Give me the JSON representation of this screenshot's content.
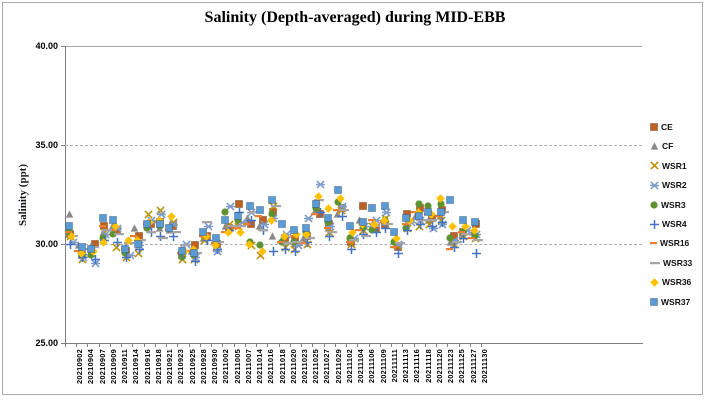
{
  "chart_data": {
    "type": "scatter",
    "title": "Salinity (Depth-averaged) during MID-EBB",
    "xlabel": "",
    "ylabel": "Salinity (ppt)",
    "ylim": [
      25,
      40
    ],
    "yticks": [
      40,
      35,
      30,
      25
    ],
    "ytick_labels": [
      "40.00",
      "35.00",
      "30.00",
      "25.00"
    ],
    "grid": "horizontal-dashed",
    "legend_position": "right",
    "categories": [
      "20210902",
      "20210904",
      "20210907",
      "20210909",
      "20210911",
      "20210914",
      "20210916",
      "20210918",
      "20210921",
      "20210923",
      "20210925",
      "20210928",
      "20210930",
      "20211002",
      "20211005",
      "20211007",
      "20211014",
      "20211016",
      "20211018",
      "20211020",
      "20211023",
      "20211025",
      "20211027",
      "20211029",
      "20211102",
      "20211104",
      "20211106",
      "20211109",
      "20211111",
      "20211113",
      "20211116",
      "20211118",
      "20211120",
      "20211123",
      "20211125",
      "20211127",
      "20211130"
    ],
    "series": [
      {
        "name": "CE",
        "marker": "square",
        "color": "#BE6022",
        "values": [
          30.5,
          29.4,
          30.0,
          30.9,
          30.7,
          29.6,
          30.4,
          31.0,
          31.1,
          30.9,
          29.4,
          29.9,
          30.4,
          30.0,
          30.8,
          32.0,
          31.0,
          31.2,
          31.6,
          30.3,
          30.2,
          30.4,
          31.5,
          31.0,
          31.8,
          30.1,
          31.9,
          30.8,
          31.0,
          29.8,
          31.5,
          31.8,
          31.3,
          31.7,
          30.4,
          30.6,
          31.0
        ]
      },
      {
        "name": "CF",
        "marker": "triangle",
        "color": "#898989",
        "values": [
          31.5,
          29.9,
          29.9,
          30.6,
          30.9,
          29.8,
          30.8,
          30.9,
          30.8,
          30.7,
          29.7,
          29.6,
          30.3,
          30.1,
          30.9,
          31.0,
          31.3,
          30.9,
          30.4,
          30.2,
          30.0,
          30.3,
          31.7,
          30.8,
          31.5,
          30.4,
          31.2,
          31.0,
          31.1,
          30.2,
          31.0,
          31.4,
          31.2,
          31.4,
          30.1,
          30.5,
          30.6
        ]
      },
      {
        "name": "WSR1",
        "marker": "x",
        "color": "#BF8F00",
        "values": [
          30.4,
          29.2,
          29.5,
          30.6,
          29.8,
          29.3,
          29.5,
          31.5,
          31.7,
          31.1,
          29.2,
          29.2,
          30.2,
          29.8,
          31.0,
          30.9,
          29.9,
          29.4,
          31.9,
          29.8,
          29.7,
          30.0,
          31.9,
          30.6,
          31.7,
          30.0,
          30.7,
          30.9,
          31.3,
          29.9,
          30.8,
          30.9,
          31.0,
          31.2,
          30.0,
          30.4,
          30.3
        ]
      },
      {
        "name": "WSR2",
        "marker": "asterisk",
        "color": "#7D9BCB",
        "values": [
          30.1,
          29.3,
          29.0,
          30.5,
          30.8,
          29.4,
          29.9,
          31.2,
          31.5,
          31.0,
          30.0,
          29.3,
          30.9,
          29.6,
          31.9,
          31.1,
          31.6,
          31.0,
          31.3,
          30.5,
          29.9,
          31.3,
          33.0,
          30.9,
          31.9,
          30.3,
          30.9,
          31.2,
          31.6,
          30.0,
          31.1,
          31.2,
          30.8,
          31.0,
          30.2,
          30.7,
          30.5
        ]
      },
      {
        "name": "WSR3",
        "marker": "circle",
        "color": "#5E9132",
        "values": [
          30.6,
          29.4,
          29.4,
          30.3,
          30.5,
          29.5,
          30.0,
          30.8,
          30.9,
          30.8,
          29.3,
          29.4,
          30.5,
          30.2,
          31.6,
          31.2,
          30.1,
          29.9,
          31.5,
          30.1,
          30.1,
          30.6,
          31.8,
          31.1,
          32.1,
          30.3,
          30.8,
          30.7,
          31.2,
          30.1,
          30.8,
          32.0,
          31.9,
          32.0,
          30.3,
          30.6,
          30.4
        ]
      },
      {
        "name": "WSR4",
        "marker": "plus",
        "color": "#4472C4",
        "values": [
          30.0,
          29.3,
          29.2,
          30.2,
          30.1,
          29.3,
          29.7,
          30.6,
          30.4,
          30.4,
          29.5,
          29.1,
          30.2,
          29.7,
          30.7,
          31.6,
          31.2,
          30.7,
          29.6,
          29.7,
          29.6,
          30.1,
          31.6,
          30.4,
          31.4,
          29.7,
          30.5,
          30.6,
          30.8,
          29.5,
          30.7,
          31.0,
          30.9,
          31.1,
          29.8,
          30.3,
          29.5
        ]
      },
      {
        "name": "WSR16",
        "marker": "dash",
        "color": "#ED7D31",
        "values": [
          30.5,
          29.5,
          29.6,
          30.8,
          30.6,
          29.6,
          30.3,
          30.9,
          31.0,
          30.6,
          29.4,
          29.5,
          30.3,
          29.9,
          30.5,
          30.7,
          30.9,
          31.3,
          31.1,
          30.0,
          30.3,
          29.9,
          31.4,
          30.7,
          31.6,
          30.0,
          30.6,
          31.1,
          31.0,
          29.7,
          30.9,
          31.5,
          31.4,
          31.3,
          29.6,
          30.5,
          30.2
        ]
      },
      {
        "name": "WSR33",
        "marker": "long-dash",
        "color": "#A5A5A5",
        "values": [
          30.3,
          29.6,
          29.7,
          30.6,
          30.4,
          29.9,
          30.1,
          30.5,
          30.2,
          30.5,
          29.8,
          29.4,
          31.0,
          30.0,
          30.8,
          30.8,
          31.5,
          30.6,
          31.8,
          29.9,
          30.0,
          30.2,
          32.1,
          30.5,
          31.6,
          30.1,
          30.3,
          30.8,
          30.9,
          29.9,
          31.0,
          31.1,
          31.1,
          31.5,
          30.0,
          30.4,
          30.1
        ]
      },
      {
        "name": "WSR36",
        "marker": "diamond",
        "color": "#FFC000",
        "values": [
          30.4,
          29.5,
          29.6,
          30.1,
          30.9,
          30.2,
          30.2,
          31.1,
          31.2,
          31.4,
          29.6,
          29.7,
          30.4,
          29.9,
          30.6,
          30.6,
          30.0,
          29.6,
          31.2,
          30.4,
          30.5,
          30.5,
          32.4,
          31.8,
          32.3,
          30.6,
          31.0,
          31.0,
          31.2,
          30.3,
          31.2,
          31.6,
          31.5,
          32.3,
          30.9,
          30.9,
          30.7
        ]
      },
      {
        "name": "WSR37",
        "marker": "square",
        "color": "#5B9BD5",
        "values": [
          30.9,
          29.8,
          29.7,
          31.3,
          31.2,
          29.7,
          30.0,
          31.0,
          31.0,
          30.8,
          29.6,
          29.5,
          30.6,
          30.3,
          31.2,
          31.4,
          31.9,
          31.7,
          32.2,
          31.0,
          30.7,
          30.8,
          32.0,
          31.3,
          32.7,
          30.9,
          31.1,
          31.8,
          31.9,
          30.6,
          31.3,
          31.4,
          31.6,
          31.6,
          32.2,
          31.2,
          31.1
        ]
      }
    ]
  }
}
